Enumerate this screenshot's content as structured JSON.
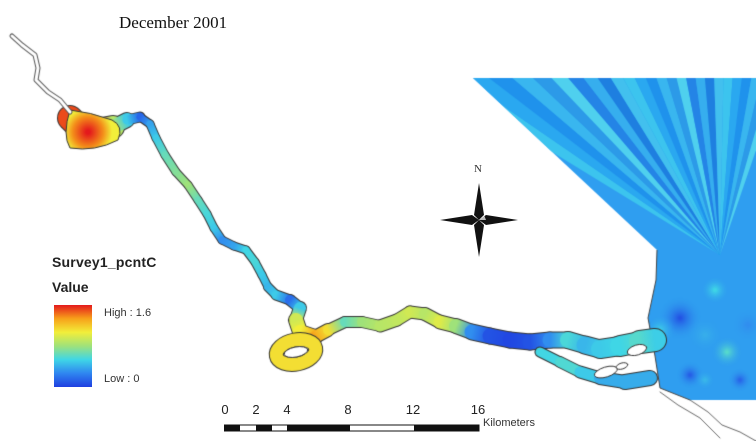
{
  "map": {
    "title": "December 2001",
    "legend": {
      "layer_name": "Survey1_pcntC",
      "field_label": "Value",
      "high_label": "High : 1.6",
      "low_label": "Low : 0",
      "high_value": 1.6,
      "low_value": 0,
      "ramp_colors": [
        "#e41a1c",
        "#f7a11a",
        "#f2ee3a",
        "#9fe27a",
        "#3fd6e6",
        "#2f86f0",
        "#1f3fe0"
      ]
    },
    "north_arrow": {
      "label": "N"
    },
    "scale_bar": {
      "tick_labels": [
        "0",
        "2",
        "4",
        "8",
        "12",
        "16"
      ],
      "units_label": "Kilometers"
    },
    "colors": {
      "water_low": "#1f3fe0",
      "water_mid": "#3fd6e6",
      "water_high": "#e41a1c",
      "shoreline": "#444444"
    }
  }
}
